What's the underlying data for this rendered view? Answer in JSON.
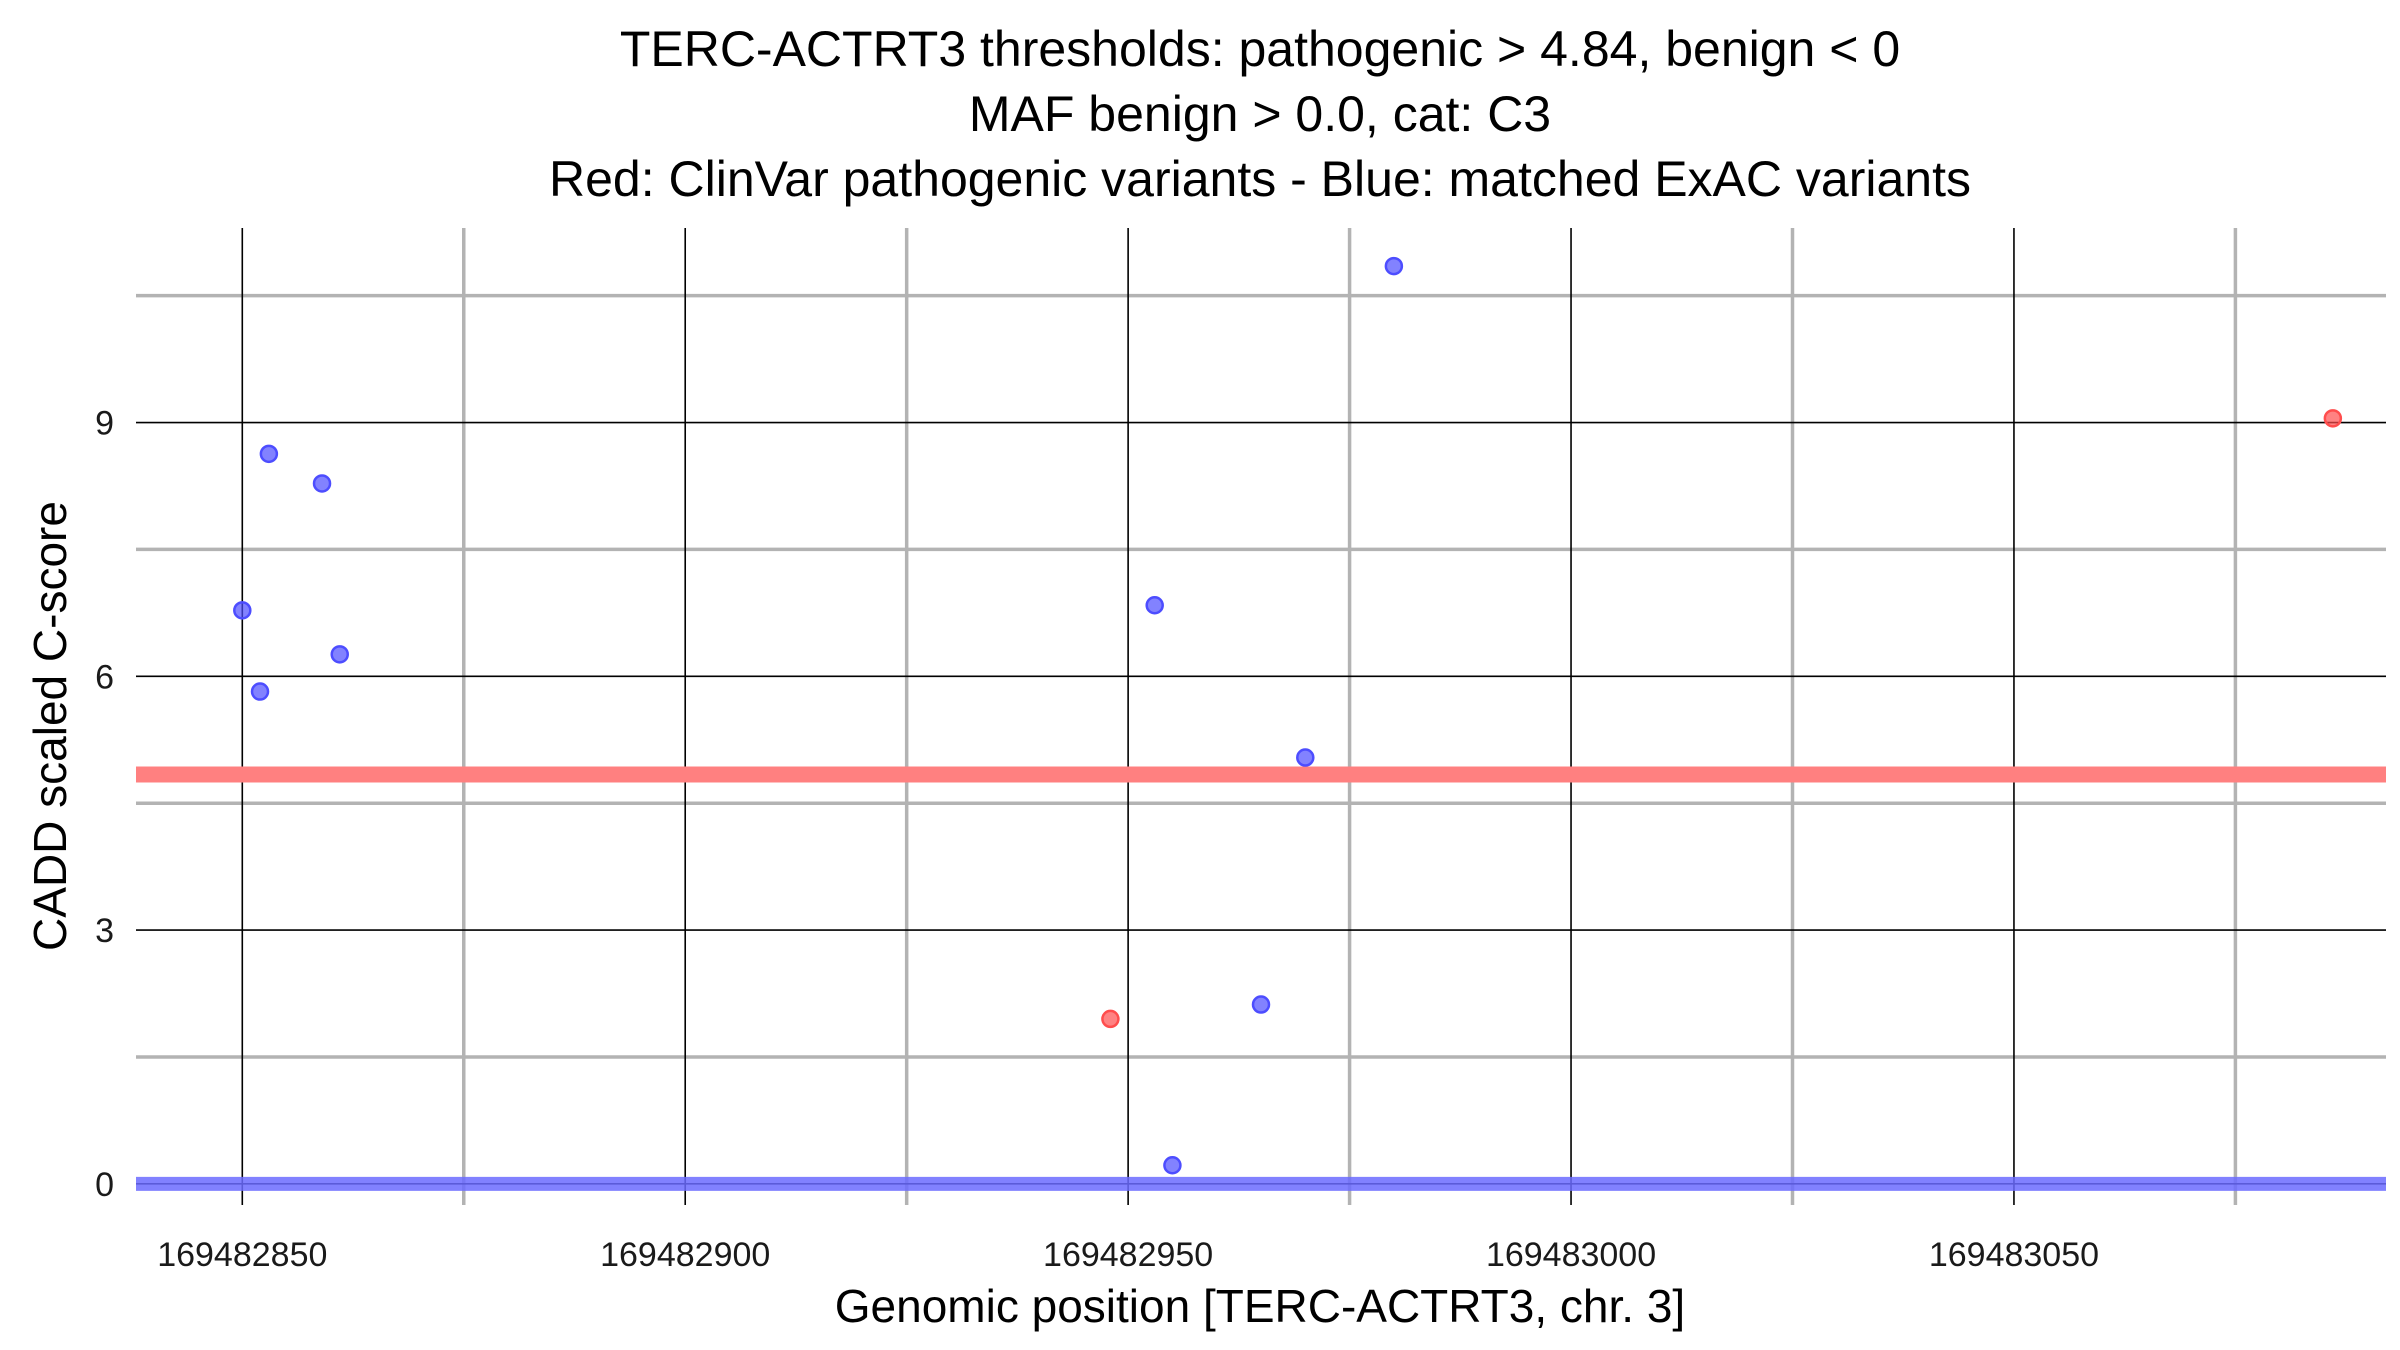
{
  "chart_data": {
    "type": "scatter",
    "title_lines": [
      "TERC-ACTRT3 thresholds: pathogenic > 4.84, benign < 0",
      "MAF benign > 0.0, cat: C3",
      "Red: ClinVar pathogenic variants - Blue: matched ExAC variants"
    ],
    "xlabel": "Genomic position [TERC-ACTRT3, chr. 3]",
    "ylabel": "CADD scaled C-score",
    "xlim": [
      169482838,
      169483092
    ],
    "ylim": [
      -0.25,
      11.3
    ],
    "x_ticks": [
      169482850,
      169482900,
      169482950,
      169483000,
      169483050
    ],
    "x_tick_labels": [
      "169482850",
      "169482900",
      "169482950",
      "169483000",
      "169483050"
    ],
    "x_minor_ticks": [
      169482875,
      169482925,
      169482975,
      169483025,
      169483075
    ],
    "y_ticks": [
      0,
      3,
      6,
      9
    ],
    "y_tick_labels": [
      "0",
      "3",
      "6",
      "9"
    ],
    "y_minor_ticks": [
      1.5,
      4.5,
      7.5,
      10.5
    ],
    "grid": true,
    "colors": {
      "pathogenic": "#ff4d4d",
      "benign": "#4d4dff",
      "major_grid": "#000000",
      "minor_grid": "#b3b3b3",
      "pathogenic_line": "#ff8080",
      "benign_line": "#6b6bff"
    },
    "thresholds": {
      "pathogenic": 4.84,
      "benign": 0
    },
    "series": [
      {
        "key": "pathogenic",
        "color": "#ff4d4d",
        "points": [
          {
            "x": 169482948,
            "y": 1.95
          },
          {
            "x": 169483086,
            "y": 9.05
          }
        ]
      },
      {
        "key": "benign",
        "color": "#4d4dff",
        "points": [
          {
            "x": 169482850,
            "y": 6.78
          },
          {
            "x": 169482852,
            "y": 5.82
          },
          {
            "x": 169482853,
            "y": 8.63
          },
          {
            "x": 169482859,
            "y": 8.28
          },
          {
            "x": 169482861,
            "y": 6.26
          },
          {
            "x": 169482953,
            "y": 6.84
          },
          {
            "x": 169482955,
            "y": 0.22
          },
          {
            "x": 169482965,
            "y": 2.12
          },
          {
            "x": 169482970,
            "y": 5.04
          },
          {
            "x": 169482980,
            "y": 10.85
          }
        ]
      }
    ]
  }
}
